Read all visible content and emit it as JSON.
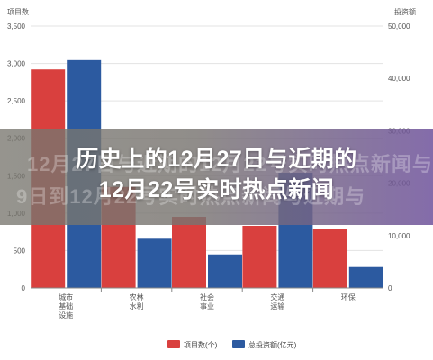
{
  "headline": {
    "line1": "历史上的12月27日与近期的",
    "line2": "12月22号实时热点新闻"
  },
  "ghost": {
    "line1": "12月27日与近期的12月22号实时热点新闻与",
    "line2": "9日到12月22号实时热点新闻与近期与"
  },
  "chart_data": {
    "type": "bar",
    "categories": [
      "城市基础设施",
      "农林水利",
      "社会事业",
      "交通运输",
      "环保"
    ],
    "category_labels": [
      "城市\n基础\n设施",
      "农林\n水利",
      "社会\n事业",
      "交通\n运输",
      "环保"
    ],
    "series": [
      {
        "name": "项目数(个)",
        "axis": "left",
        "color": "#d9403e",
        "values": [
          2920,
          1350,
          950,
          830,
          790
        ]
      },
      {
        "name": "总投资额(亿元)",
        "axis": "right",
        "color": "#2c5aa0",
        "values": [
          43500,
          9400,
          6400,
          22000,
          4000
        ]
      }
    ],
    "left_axis": {
      "title": "项目数",
      "min": 0,
      "max": 3500,
      "ticks": [
        "0",
        "500",
        "1,000",
        "1,500",
        "2,000",
        "2,500",
        "3,000",
        "3,500"
      ]
    },
    "right_axis": {
      "title": "投资额",
      "min": 0,
      "max": 50000,
      "ticks": [
        "0",
        "10,000",
        "20,000",
        "30,000",
        "40,000",
        "50,000"
      ]
    },
    "grid": true,
    "legend": "bottom"
  }
}
